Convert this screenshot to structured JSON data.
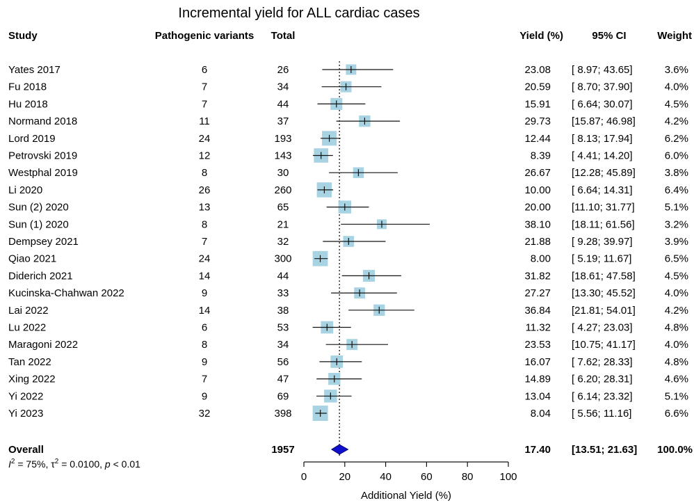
{
  "chart_data": {
    "type": "forest",
    "title": "Incremental yield for ALL cardiac cases",
    "xlabel": "Additional Yield (%)",
    "xlim": [
      0,
      100
    ],
    "xticks": [
      0,
      20,
      40,
      60,
      80,
      100
    ],
    "reference_line": 17.4,
    "headers": {
      "study": "Study",
      "variants": "Pathogenic variants",
      "total": "Total",
      "yield": "Yield (%)",
      "ci": "95% CI",
      "weight": "Weight"
    },
    "studies": [
      {
        "study": "Yates 2017",
        "variants": "6",
        "total": "26",
        "yield": 23.08,
        "ci_low": 8.97,
        "ci_high": 43.65,
        "yield_text": "23.08",
        "ci_text": "[ 8.97; 43.65]",
        "weight": "3.6%",
        "weight_value": 3.6
      },
      {
        "study": "Fu 2018",
        "variants": "7",
        "total": "34",
        "yield": 20.59,
        "ci_low": 8.7,
        "ci_high": 37.9,
        "yield_text": "20.59",
        "ci_text": "[ 8.70; 37.90]",
        "weight": "4.0%",
        "weight_value": 4.0
      },
      {
        "study": "Hu 2018",
        "variants": "7",
        "total": "44",
        "yield": 15.91,
        "ci_low": 6.64,
        "ci_high": 30.07,
        "yield_text": "15.91",
        "ci_text": "[ 6.64; 30.07]",
        "weight": "4.5%",
        "weight_value": 4.5
      },
      {
        "study": "Normand 2018",
        "variants": "11",
        "total": "37",
        "yield": 29.73,
        "ci_low": 15.87,
        "ci_high": 46.98,
        "yield_text": "29.73",
        "ci_text": "[15.87; 46.98]",
        "weight": "4.2%",
        "weight_value": 4.2
      },
      {
        "study": "Lord 2019",
        "variants": "24",
        "total": "193",
        "yield": 12.44,
        "ci_low": 8.13,
        "ci_high": 17.94,
        "yield_text": "12.44",
        "ci_text": "[ 8.13; 17.94]",
        "weight": "6.2%",
        "weight_value": 6.2
      },
      {
        "study": "Petrovski 2019",
        "variants": "12",
        "total": "143",
        "yield": 8.39,
        "ci_low": 4.41,
        "ci_high": 14.2,
        "yield_text": "8.39",
        "ci_text": "[ 4.41; 14.20]",
        "weight": "6.0%",
        "weight_value": 6.0
      },
      {
        "study": "Westphal 2019",
        "variants": "8",
        "total": "30",
        "yield": 26.67,
        "ci_low": 12.28,
        "ci_high": 45.89,
        "yield_text": "26.67",
        "ci_text": "[12.28; 45.89]",
        "weight": "3.8%",
        "weight_value": 3.8
      },
      {
        "study": "Li 2020",
        "variants": "26",
        "total": "260",
        "yield": 10.0,
        "ci_low": 6.64,
        "ci_high": 14.31,
        "yield_text": "10.00",
        "ci_text": "[ 6.64; 14.31]",
        "weight": "6.4%",
        "weight_value": 6.4
      },
      {
        "study": "Sun (2) 2020",
        "variants": "13",
        "total": "65",
        "yield": 20.0,
        "ci_low": 11.1,
        "ci_high": 31.77,
        "yield_text": "20.00",
        "ci_text": "[11.10; 31.77]",
        "weight": "5.1%",
        "weight_value": 5.1
      },
      {
        "study": "Sun (1) 2020",
        "variants": "8",
        "total": "21",
        "yield": 38.1,
        "ci_low": 18.11,
        "ci_high": 61.56,
        "yield_text": "38.10",
        "ci_text": "[18.11; 61.56]",
        "weight": "3.2%",
        "weight_value": 3.2
      },
      {
        "study": "Dempsey 2021",
        "variants": "7",
        "total": "32",
        "yield": 21.88,
        "ci_low": 9.28,
        "ci_high": 39.97,
        "yield_text": "21.88",
        "ci_text": "[ 9.28; 39.97]",
        "weight": "3.9%",
        "weight_value": 3.9
      },
      {
        "study": "Qiao 2021",
        "variants": "24",
        "total": "300",
        "yield": 8.0,
        "ci_low": 5.19,
        "ci_high": 11.67,
        "yield_text": "8.00",
        "ci_text": "[ 5.19; 11.67]",
        "weight": "6.5%",
        "weight_value": 6.5
      },
      {
        "study": "Diderich 2021",
        "variants": "14",
        "total": "44",
        "yield": 31.82,
        "ci_low": 18.61,
        "ci_high": 47.58,
        "yield_text": "31.82",
        "ci_text": "[18.61; 47.58]",
        "weight": "4.5%",
        "weight_value": 4.5
      },
      {
        "study": "Kucinska-Chahwan 2022",
        "variants": "9",
        "total": "33",
        "yield": 27.27,
        "ci_low": 13.3,
        "ci_high": 45.52,
        "yield_text": "27.27",
        "ci_text": "[13.30; 45.52]",
        "weight": "4.0%",
        "weight_value": 4.0
      },
      {
        "study": "Lai 2022",
        "variants": "14",
        "total": "38",
        "yield": 36.84,
        "ci_low": 21.81,
        "ci_high": 54.01,
        "yield_text": "36.84",
        "ci_text": "[21.81; 54.01]",
        "weight": "4.2%",
        "weight_value": 4.2
      },
      {
        "study": "Lu 2022",
        "variants": "6",
        "total": "53",
        "yield": 11.32,
        "ci_low": 4.27,
        "ci_high": 23.03,
        "yield_text": "11.32",
        "ci_text": "[ 4.27; 23.03]",
        "weight": "4.8%",
        "weight_value": 4.8
      },
      {
        "study": "Maragoni 2022",
        "variants": "8",
        "total": "34",
        "yield": 23.53,
        "ci_low": 10.75,
        "ci_high": 41.17,
        "yield_text": "23.53",
        "ci_text": "[10.75; 41.17]",
        "weight": "4.0%",
        "weight_value": 4.0
      },
      {
        "study": "Tan 2022",
        "variants": "9",
        "total": "56",
        "yield": 16.07,
        "ci_low": 7.62,
        "ci_high": 28.33,
        "yield_text": "16.07",
        "ci_text": "[ 7.62; 28.33]",
        "weight": "4.8%",
        "weight_value": 4.8
      },
      {
        "study": "Xing 2022",
        "variants": "7",
        "total": "47",
        "yield": 14.89,
        "ci_low": 6.2,
        "ci_high": 28.31,
        "yield_text": "14.89",
        "ci_text": "[ 6.20; 28.31]",
        "weight": "4.6%",
        "weight_value": 4.6
      },
      {
        "study": "Yi 2022",
        "variants": "9",
        "total": "69",
        "yield": 13.04,
        "ci_low": 6.14,
        "ci_high": 23.32,
        "yield_text": "13.04",
        "ci_text": "[ 6.14; 23.32]",
        "weight": "5.1%",
        "weight_value": 5.1
      },
      {
        "study": "Yi 2023",
        "variants": "32",
        "total": "398",
        "yield": 8.04,
        "ci_low": 5.56,
        "ci_high": 11.16,
        "yield_text": "8.04",
        "ci_text": "[ 5.56; 11.16]",
        "weight": "6.6%",
        "weight_value": 6.6
      }
    ],
    "overall": {
      "label": "Overall",
      "total": "1957",
      "yield": 17.4,
      "ci_low": 13.51,
      "ci_high": 21.63,
      "yield_text": "17.40",
      "ci_text": "[13.51; 21.63]",
      "weight": "100.0%"
    },
    "heterogeneity": {
      "i2_value": "75%",
      "tau2_value": "0.0100",
      "p_value": "< 0.01"
    },
    "colors": {
      "box": "#a8d3e2",
      "diamond": "#1010cc",
      "line": "#111111"
    }
  }
}
